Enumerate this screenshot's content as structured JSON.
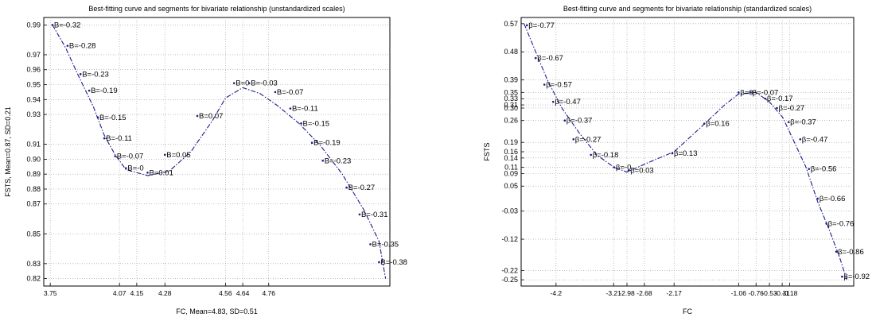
{
  "chart_data": [
    {
      "type": "line",
      "title": "Best-fitting curve and segments for bivariate relationship (unstandardized scales)",
      "xlabel": "FC, Mean=4.83, SD=0.51",
      "ylabel": "FSTS, Mean=0.87, SD=0.21",
      "xlim": [
        3.72,
        5.32
      ],
      "ylim": [
        0.815,
        0.995
      ],
      "x_tick_labels": [
        "3.75",
        "4.07",
        "4.15",
        "4.28",
        "4.56",
        "4.64",
        "4.76"
      ],
      "y_tick_labels": [
        "0.99",
        "0.97",
        "0.96",
        "0.95",
        "0.94",
        "0.93",
        "0.91",
        "0.90",
        "0.89",
        "0.88",
        "0.87",
        "0.85",
        "0.83",
        "0.82"
      ],
      "grid": true,
      "series": [
        {
          "x": [
            3.76,
            3.82,
            3.88,
            3.95,
            4.0,
            4.05,
            4.1,
            4.2,
            4.3,
            4.4,
            4.5,
            4.56,
            4.64,
            4.72,
            4.8,
            4.9,
            5.0,
            5.1,
            5.2,
            5.27,
            5.3
          ],
          "y": [
            0.99,
            0.975,
            0.956,
            0.935,
            0.916,
            0.903,
            0.893,
            0.889,
            0.892,
            0.905,
            0.926,
            0.941,
            0.948,
            0.944,
            0.936,
            0.924,
            0.909,
            0.89,
            0.866,
            0.845,
            0.82
          ]
        }
      ],
      "segment_labels": [
        {
          "text": "B=-0.32",
          "x": 3.76,
          "y": 0.99
        },
        {
          "text": "B=-0.28",
          "x": 3.83,
          "y": 0.976
        },
        {
          "text": "B=-0.23",
          "x": 3.89,
          "y": 0.957
        },
        {
          "text": "B=-0.19",
          "x": 3.93,
          "y": 0.946
        },
        {
          "text": "B=-0.15",
          "x": 3.97,
          "y": 0.928
        },
        {
          "text": "B=-0.11",
          "x": 4.0,
          "y": 0.914
        },
        {
          "text": "B=-0.07",
          "x": 4.05,
          "y": 0.902
        },
        {
          "text": "B=-0",
          "x": 4.1,
          "y": 0.894
        },
        {
          "text": "B=0.01",
          "x": 4.2,
          "y": 0.891
        },
        {
          "text": "B=0.05",
          "x": 4.28,
          "y": 0.903
        },
        {
          "text": "B=0.07",
          "x": 4.43,
          "y": 0.929
        },
        {
          "text": "B=0",
          "x": 4.6,
          "y": 0.951
        },
        {
          "text": "B=-0.03",
          "x": 4.67,
          "y": 0.951
        },
        {
          "text": "B=-0.07",
          "x": 4.79,
          "y": 0.945
        },
        {
          "text": "B=-0.11",
          "x": 4.86,
          "y": 0.934
        },
        {
          "text": "B=-0.15",
          "x": 4.91,
          "y": 0.924
        },
        {
          "text": "B=-0.19",
          "x": 4.96,
          "y": 0.911
        },
        {
          "text": "B=-0.23",
          "x": 5.01,
          "y": 0.899
        },
        {
          "text": "B=-0.27",
          "x": 5.12,
          "y": 0.881
        },
        {
          "text": "B=-0.31",
          "x": 5.18,
          "y": 0.863
        },
        {
          "text": "B=-0.35",
          "x": 5.23,
          "y": 0.843
        },
        {
          "text": "B=-0.38",
          "x": 5.27,
          "y": 0.831
        }
      ]
    },
    {
      "type": "line",
      "title": "Best-fitting curve and segments for bivariate relationship (standardized scales)",
      "xlabel": "FC",
      "ylabel": "FSTS",
      "xlim": [
        -4.8,
        0.92
      ],
      "ylim": [
        -0.27,
        0.59
      ],
      "x_tick_labels": [
        "-4.2",
        "-3.21",
        "-2.98",
        "-2.68",
        "-2.17",
        "-1.06",
        "-0.76",
        "-0.53",
        "-0.31",
        "-0.18"
      ],
      "y_tick_labels": [
        "0.57",
        "0.48",
        "0.39",
        "0.35",
        "0.33",
        "0.31",
        "0.30",
        "0.26",
        "0.19",
        "0.16",
        "0.14",
        "0.11",
        "0.09",
        "0.05",
        "-0.03",
        "-0.12",
        "-0.22",
        "-0.25"
      ],
      "grid": true,
      "series": [
        {
          "x": [
            -4.75,
            -4.55,
            -4.35,
            -4.1,
            -3.8,
            -3.5,
            -3.2,
            -2.98,
            -2.68,
            -2.17,
            -1.7,
            -1.3,
            -1.06,
            -0.76,
            -0.53,
            -0.3,
            -0.1,
            0.1,
            0.3,
            0.5,
            0.68,
            0.8
          ],
          "y": [
            0.57,
            0.48,
            0.39,
            0.3,
            0.22,
            0.15,
            0.11,
            0.095,
            0.12,
            0.16,
            0.24,
            0.31,
            0.345,
            0.35,
            0.32,
            0.27,
            0.19,
            0.11,
            0.0,
            -0.09,
            -0.18,
            -0.25
          ]
        }
      ],
      "segment_labels": [
        {
          "text": "β=-0.77",
          "x": -4.7,
          "y": 0.565
        },
        {
          "text": "β=-0.67",
          "x": -4.55,
          "y": 0.46
        },
        {
          "text": "β=-0.57",
          "x": -4.4,
          "y": 0.375
        },
        {
          "text": "β=-0.47",
          "x": -4.25,
          "y": 0.32
        },
        {
          "text": "β=-0.37",
          "x": -4.05,
          "y": 0.26
        },
        {
          "text": "β=-0.27",
          "x": -3.9,
          "y": 0.2
        },
        {
          "text": "β=-0.18",
          "x": -3.6,
          "y": 0.15
        },
        {
          "text": "β=-0",
          "x": -3.2,
          "y": 0.11
        },
        {
          "text": "β=0.03",
          "x": -2.95,
          "y": 0.1
        },
        {
          "text": "β=0.13",
          "x": -2.2,
          "y": 0.155
        },
        {
          "text": "β=0.16",
          "x": -1.65,
          "y": 0.25
        },
        {
          "text": "β=0",
          "x": -1.06,
          "y": 0.35
        },
        {
          "text": "β=-0.07",
          "x": -0.85,
          "y": 0.35
        },
        {
          "text": "β=-0.17",
          "x": -0.6,
          "y": 0.33
        },
        {
          "text": "β=-0.27",
          "x": -0.4,
          "y": 0.3
        },
        {
          "text": "β=-0.37",
          "x": -0.2,
          "y": 0.255
        },
        {
          "text": "β=-0.47",
          "x": 0.0,
          "y": 0.2
        },
        {
          "text": "β=-0.56",
          "x": 0.15,
          "y": 0.105
        },
        {
          "text": "β=-0.66",
          "x": 0.3,
          "y": 0.01
        },
        {
          "text": "β=-0.76",
          "x": 0.45,
          "y": -0.07
        },
        {
          "text": "β=-0.86",
          "x": 0.62,
          "y": -0.16
        },
        {
          "text": "β=-0.92",
          "x": 0.72,
          "y": -0.24
        }
      ]
    }
  ]
}
